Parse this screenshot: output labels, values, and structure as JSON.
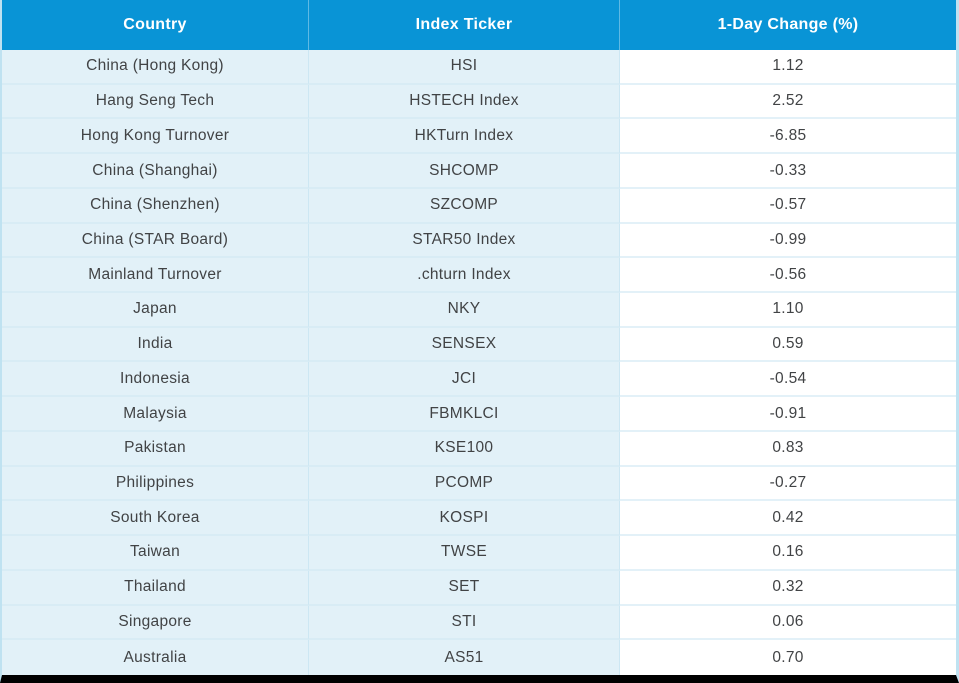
{
  "colors": {
    "header_bg": "#0994d6",
    "header_text": "#ffffff",
    "row_blue_bg": "#e2f1f8",
    "row_white_bg": "#ffffff",
    "cell_text": "#414345",
    "table_edge": "#bfe2f1",
    "bottom_bar": "#000000"
  },
  "chart_data": {
    "type": "table",
    "title": "",
    "columns": [
      "Country",
      "Index Ticker",
      "1-Day Change (%)"
    ],
    "rows": [
      {
        "country": "China (Hong Kong)",
        "ticker": "HSI",
        "change": "1.12"
      },
      {
        "country": "Hang Seng Tech",
        "ticker": "HSTECH Index",
        "change": "2.52"
      },
      {
        "country": "Hong Kong Turnover",
        "ticker": "HKTurn Index",
        "change": "-6.85"
      },
      {
        "country": "China (Shanghai)",
        "ticker": "SHCOMP",
        "change": "-0.33"
      },
      {
        "country": "China (Shenzhen)",
        "ticker": "SZCOMP",
        "change": "-0.57"
      },
      {
        "country": "China (STAR Board)",
        "ticker": "STAR50 Index",
        "change": "-0.99"
      },
      {
        "country": "Mainland Turnover",
        "ticker": ".chturn Index",
        "change": "-0.56"
      },
      {
        "country": "Japan",
        "ticker": "NKY",
        "change": "1.10"
      },
      {
        "country": "India",
        "ticker": "SENSEX",
        "change": "0.59"
      },
      {
        "country": "Indonesia",
        "ticker": "JCI",
        "change": "-0.54"
      },
      {
        "country": "Malaysia",
        "ticker": "FBMKLCI",
        "change": "-0.91"
      },
      {
        "country": "Pakistan",
        "ticker": "KSE100",
        "change": "0.83"
      },
      {
        "country": "Philippines",
        "ticker": "PCOMP",
        "change": "-0.27"
      },
      {
        "country": "South Korea",
        "ticker": "KOSPI",
        "change": "0.42"
      },
      {
        "country": "Taiwan",
        "ticker": "TWSE",
        "change": "0.16"
      },
      {
        "country": "Thailand",
        "ticker": "SET",
        "change": "0.32"
      },
      {
        "country": "Singapore",
        "ticker": "STI",
        "change": "0.06"
      },
      {
        "country": "Australia",
        "ticker": "AS51",
        "change": "0.70"
      }
    ]
  }
}
